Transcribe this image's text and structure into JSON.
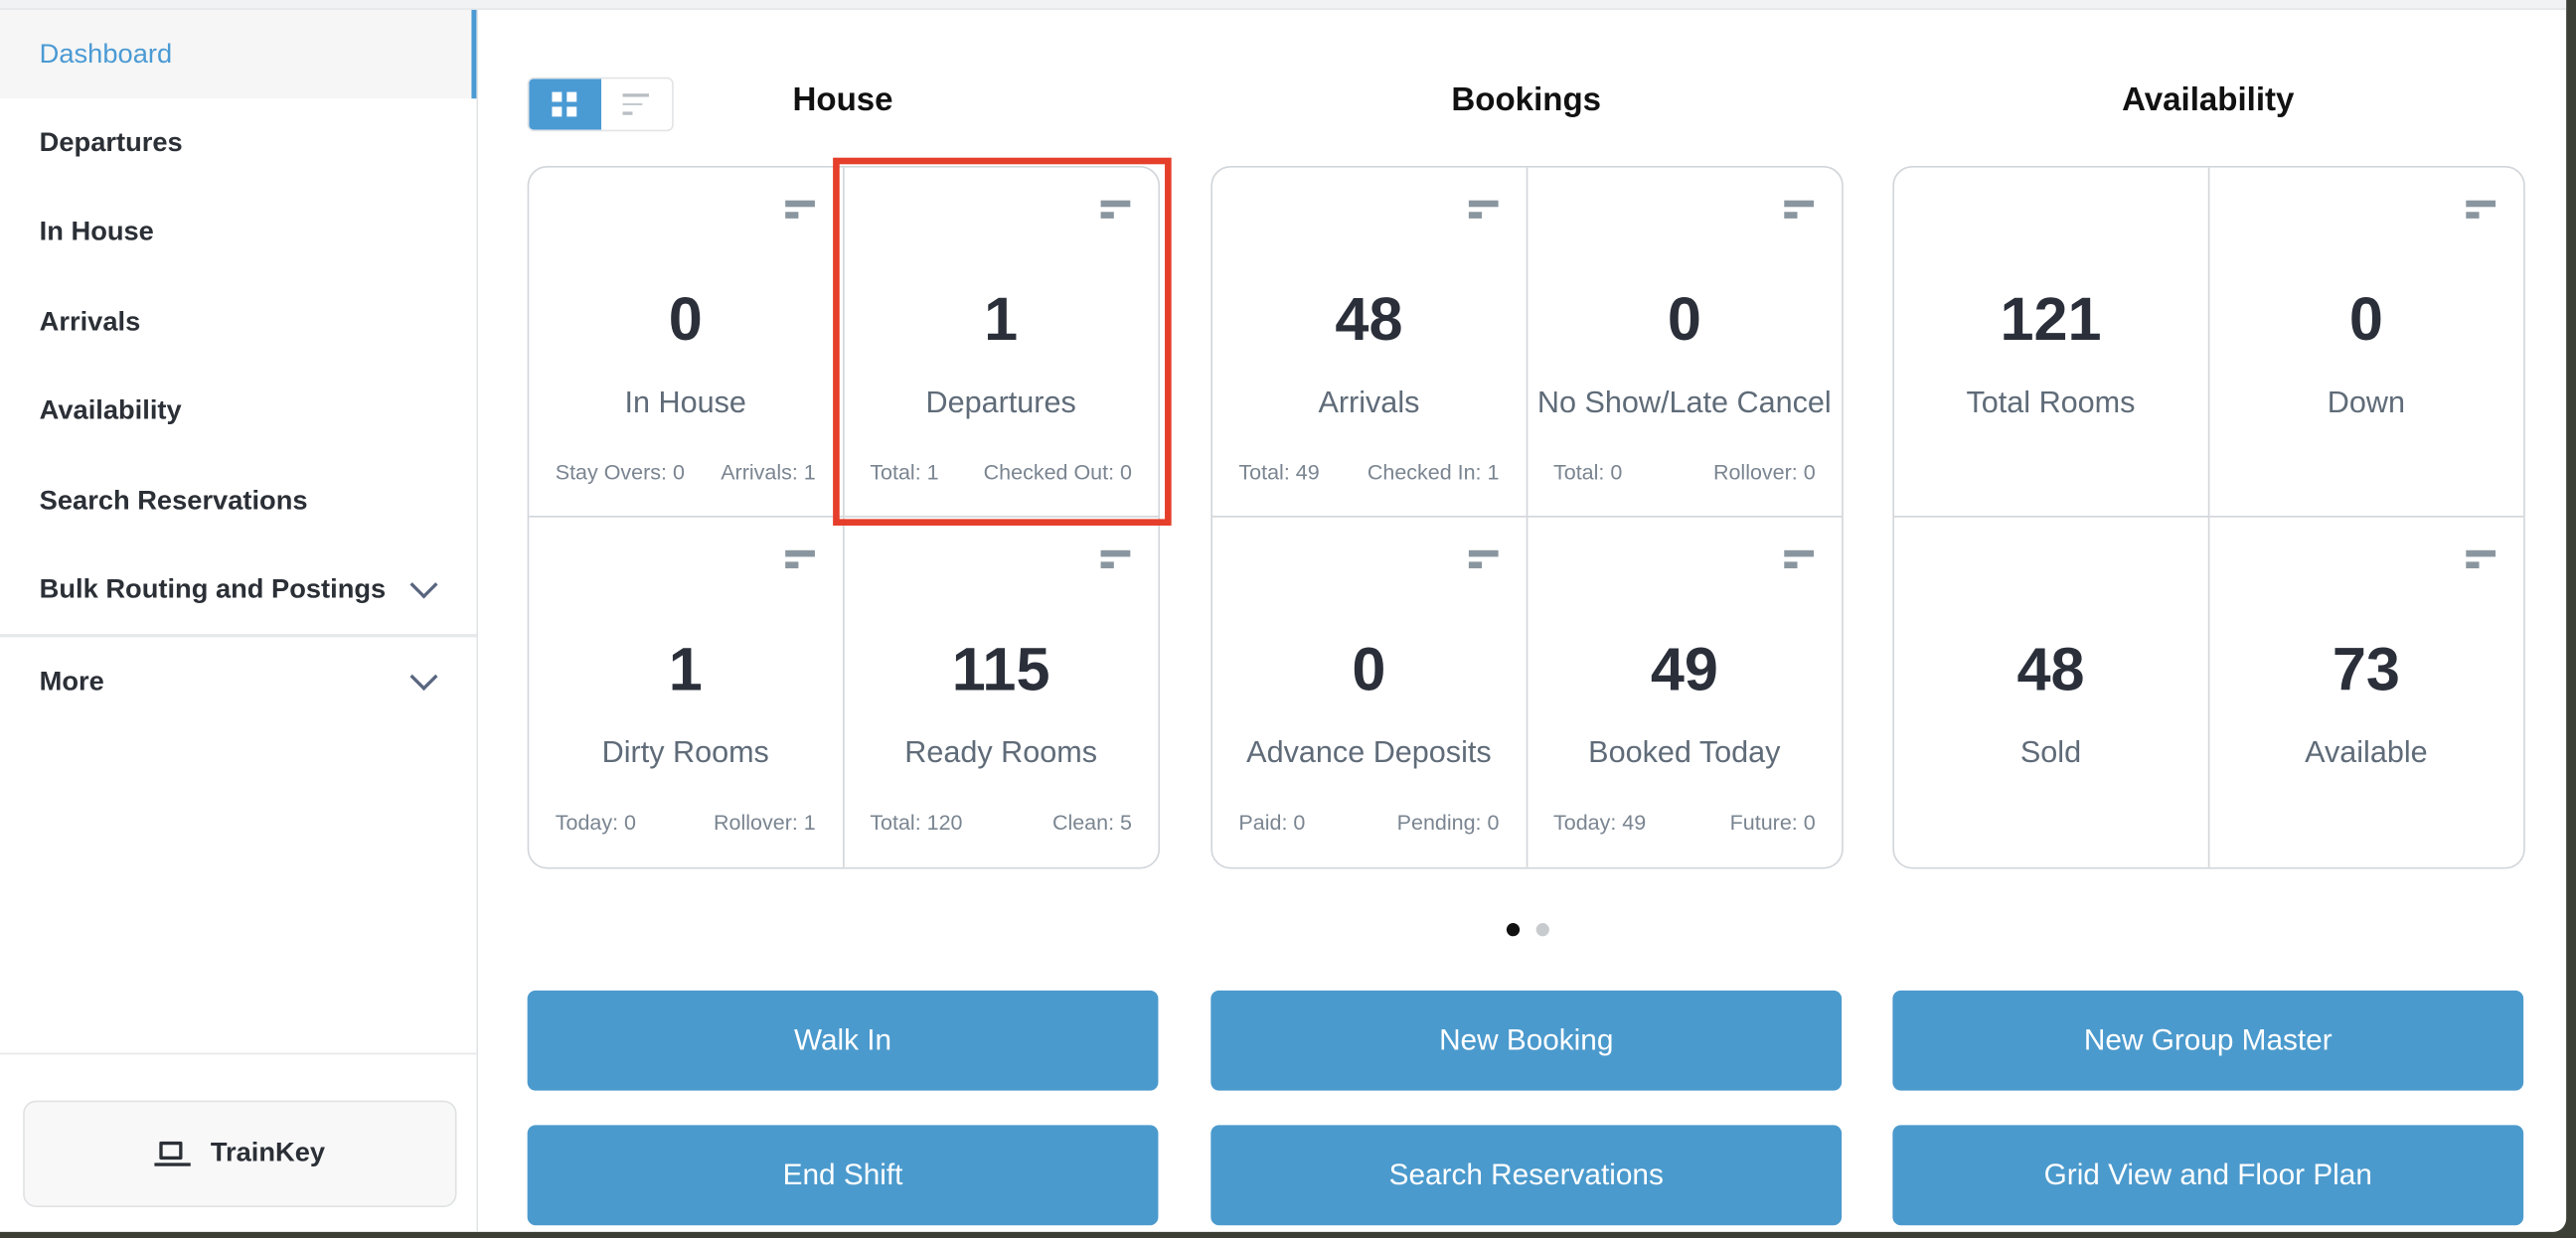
{
  "sidebar": {
    "items": [
      {
        "label": "Dashboard",
        "active": true
      },
      {
        "label": "Departures"
      },
      {
        "label": "In House"
      },
      {
        "label": "Arrivals"
      },
      {
        "label": "Availability"
      },
      {
        "label": "Search Reservations"
      },
      {
        "label": "Bulk Routing and Postings",
        "expandable": true
      }
    ],
    "more": "More",
    "trainkey": "TrainKey"
  },
  "sections": [
    {
      "title": "House",
      "tiles": [
        {
          "value": "0",
          "label": "In House",
          "sub": [
            "Stay Overs: 0",
            "Arrivals: 1"
          ],
          "icon": "filter-icon"
        },
        {
          "value": "1",
          "label": "Departures",
          "sub": [
            "Total: 1",
            "Checked Out: 0"
          ],
          "icon": "filter-icon",
          "highlighted": true
        },
        {
          "value": "1",
          "label": "Dirty Rooms",
          "sub": [
            "Today: 0",
            "Rollover: 1"
          ],
          "icon": "filter-icon"
        },
        {
          "value": "115",
          "label": "Ready Rooms",
          "sub": [
            "Total: 120",
            "Clean: 5"
          ],
          "icon": "filter-icon"
        }
      ]
    },
    {
      "title": "Bookings",
      "tiles": [
        {
          "value": "48",
          "label": "Arrivals",
          "sub": [
            "Total: 49",
            "Checked In: 1"
          ],
          "icon": "filter-icon"
        },
        {
          "value": "0",
          "label": "No Show/Late Cancel",
          "sub": [
            "Total: 0",
            "Rollover: 0"
          ],
          "icon": "filter-icon"
        },
        {
          "value": "0",
          "label": "Advance Deposits",
          "sub": [
            "Paid: 0",
            "Pending: 0"
          ],
          "icon": "filter-icon"
        },
        {
          "value": "49",
          "label": "Booked Today",
          "sub": [
            "Today: 49",
            "Future: 0"
          ],
          "icon": "filter-icon"
        }
      ]
    },
    {
      "title": "Availability",
      "tiles": [
        {
          "value": "121",
          "label": "Total Rooms",
          "sub": [
            "",
            ""
          ],
          "icon": ""
        },
        {
          "value": "0",
          "label": "Down",
          "sub": [
            "",
            ""
          ],
          "icon": "filter-icon"
        },
        {
          "value": "48",
          "label": "Sold",
          "sub": [
            "",
            ""
          ],
          "icon": ""
        },
        {
          "value": "73",
          "label": "Available",
          "sub": [
            "",
            ""
          ],
          "icon": "filter-icon"
        }
      ]
    }
  ],
  "pager": {
    "pages": 2,
    "current": 1
  },
  "actions": [
    "Walk In",
    "New Booking",
    "New Group Master",
    "End Shift",
    "Search Reservations",
    "Grid View and Floor Plan"
  ],
  "colors": {
    "accent": "#4a9ad4",
    "button": "#4b9acd",
    "highlight": "#e53e2a"
  }
}
